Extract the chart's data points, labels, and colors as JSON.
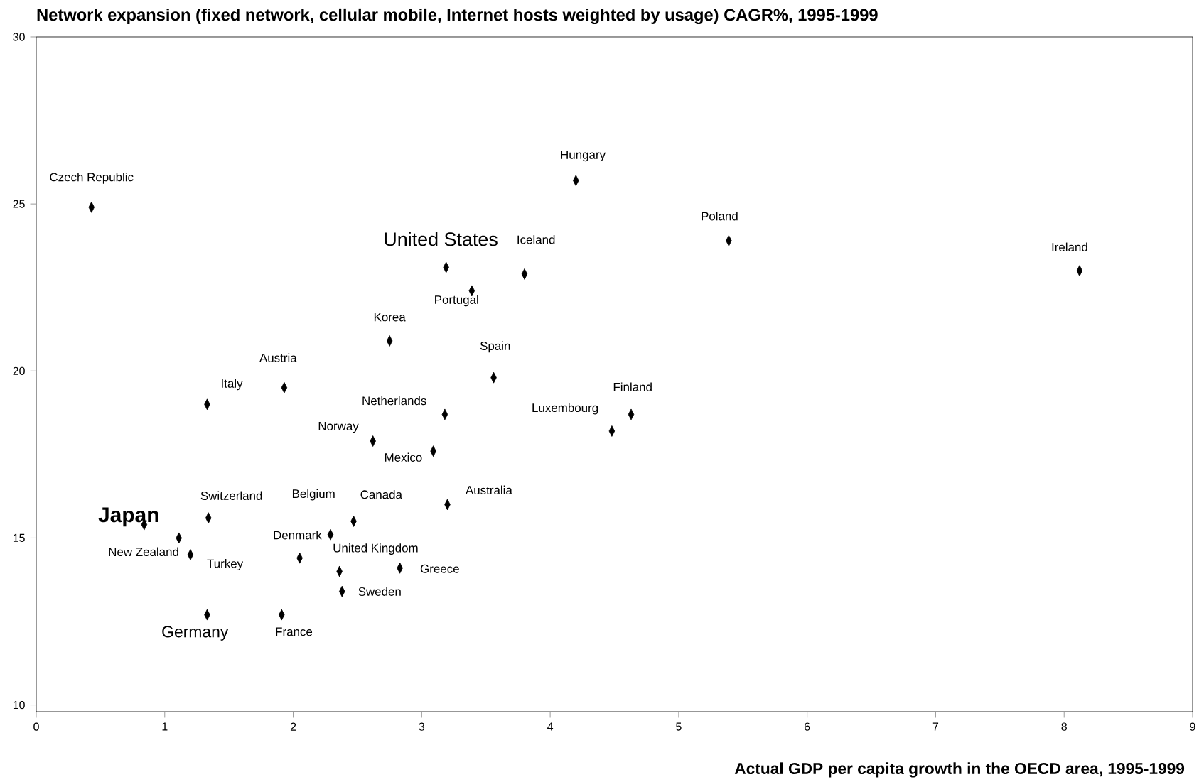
{
  "chart_data": {
    "type": "scatter",
    "title": "Network expansion (fixed network, cellular mobile, Internet hosts weighted by usage) CAGR%, 1995-1999",
    "xlabel": "Actual GDP per capita growth in the OECD area, 1995-1999",
    "x": [
      0.43,
      4.2,
      5.39,
      8.12,
      3.19,
      3.8,
      3.39,
      2.75,
      3.56,
      1.93,
      1.33,
      3.18,
      4.63,
      4.48,
      2.62,
      3.09,
      3.2,
      1.34,
      2.47,
      0.84,
      2.29,
      1.11,
      1.2,
      2.05,
      2.36,
      2.83,
      2.38,
      1.33,
      1.91
    ],
    "values": [
      24.9,
      25.7,
      23.9,
      23.0,
      23.1,
      22.9,
      22.4,
      20.9,
      19.8,
      19.5,
      19.0,
      18.7,
      18.7,
      18.2,
      17.9,
      17.6,
      16.0,
      15.6,
      15.5,
      15.4,
      15.1,
      15.0,
      14.5,
      14.4,
      14.0,
      14.1,
      13.4,
      12.7,
      12.7
    ],
    "color": "#000000",
    "marker": "diamond",
    "xlim": [
      0,
      9
    ],
    "ylim": [
      9.8,
      30
    ],
    "xticks": [
      0,
      1,
      2,
      3,
      4,
      5,
      6,
      7,
      8,
      9
    ],
    "yticks": [
      10,
      15,
      20,
      25,
      30
    ],
    "annotations": [
      {
        "text": "Czech Republic",
        "x": 0.43,
        "y": 24.9
      },
      {
        "text": "Hungary",
        "x": 4.2,
        "y": 25.7
      },
      {
        "text": "Poland",
        "x": 5.39,
        "y": 23.9
      },
      {
        "text": "Ireland",
        "x": 8.12,
        "y": 23.0
      },
      {
        "text": "United States",
        "x": 3.19,
        "y": 23.1
      },
      {
        "text": "Iceland",
        "x": 3.8,
        "y": 22.9
      },
      {
        "text": "Portugal",
        "x": 3.39,
        "y": 22.4
      },
      {
        "text": "Korea",
        "x": 2.75,
        "y": 20.9
      },
      {
        "text": "Spain",
        "x": 3.56,
        "y": 19.8
      },
      {
        "text": "Austria",
        "x": 1.93,
        "y": 19.5
      },
      {
        "text": "Italy",
        "x": 1.33,
        "y": 19.0
      },
      {
        "text": "Netherlands",
        "x": 3.18,
        "y": 18.7
      },
      {
        "text": "Finland",
        "x": 4.63,
        "y": 18.7
      },
      {
        "text": "Luxembourg",
        "x": 4.48,
        "y": 18.2
      },
      {
        "text": "Norway",
        "x": 2.62,
        "y": 17.9
      },
      {
        "text": "Mexico",
        "x": 3.09,
        "y": 17.6
      },
      {
        "text": "Australia",
        "x": 3.2,
        "y": 16.0
      },
      {
        "text": "Switzerland",
        "x": 1.34,
        "y": 15.6
      },
      {
        "text": "Canada",
        "x": 2.47,
        "y": 15.5
      },
      {
        "text": "Japan",
        "x": 0.84,
        "y": 15.4
      },
      {
        "text": "Belgium",
        "x": 2.29,
        "y": 15.1
      },
      {
        "text": "New Zealand",
        "x": 1.11,
        "y": 15.0
      },
      {
        "text": "Turkey",
        "x": 1.2,
        "y": 14.5
      },
      {
        "text": "Denmark",
        "x": 2.05,
        "y": 14.4
      },
      {
        "text": "United Kingdom",
        "x": 2.36,
        "y": 14.0
      },
      {
        "text": "Greece",
        "x": 2.83,
        "y": 14.1
      },
      {
        "text": "Sweden",
        "x": 2.38,
        "y": 13.4
      },
      {
        "text": "Germany",
        "x": 1.33,
        "y": 12.7
      },
      {
        "text": "France",
        "x": 1.91,
        "y": 12.7
      }
    ]
  }
}
